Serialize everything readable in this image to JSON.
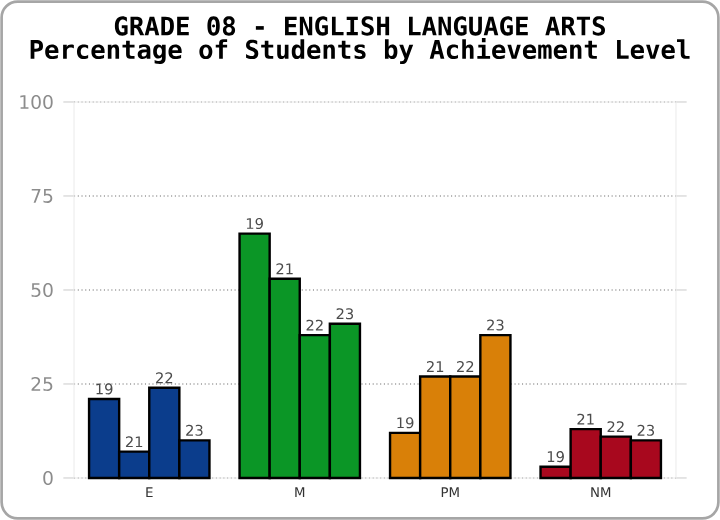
{
  "chart_data": {
    "type": "bar",
    "title": "GRADE 08 - ENGLISH LANGUAGE ARTS",
    "subtitle": "Percentage of Students by Achievement Level",
    "categories": [
      "E",
      "M",
      "PM",
      "NM"
    ],
    "series": [
      {
        "name": "19",
        "colors": [
          "#0b3d8c",
          "#0b9626",
          "#d98008",
          "#a8081e"
        ],
        "values": [
          21,
          65,
          12,
          3
        ]
      },
      {
        "name": "21",
        "colors": [
          "#0b3d8c",
          "#0b9626",
          "#d98008",
          "#a8081e"
        ],
        "values": [
          7,
          53,
          27,
          13
        ]
      },
      {
        "name": "22",
        "colors": [
          "#0b3d8c",
          "#0b9626",
          "#d98008",
          "#a8081e"
        ],
        "values": [
          24,
          38,
          27,
          11
        ]
      },
      {
        "name": "23",
        "colors": [
          "#0b3d8c",
          "#0b9626",
          "#d98008",
          "#a8081e"
        ],
        "values": [
          10,
          41,
          38,
          10
        ]
      }
    ],
    "ylim": [
      0,
      100
    ],
    "yticks": [
      0,
      25,
      50,
      75,
      100
    ],
    "grid": "y",
    "legend": false
  }
}
